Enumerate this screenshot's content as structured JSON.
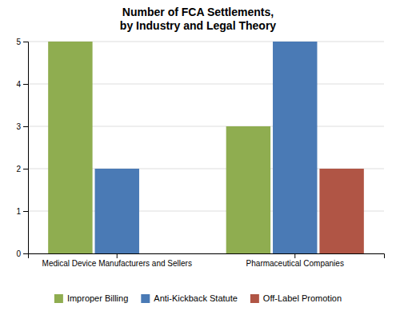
{
  "chart_data": {
    "type": "bar",
    "title": "Number of FCA Settlements,\nby Industry and Legal Theory",
    "categories": [
      "Medical Device Manufacturers and Sellers",
      "Pharmaceutical Companies"
    ],
    "series": [
      {
        "name": "Improper Billing",
        "values": [
          5,
          3
        ],
        "color": "#8fad50"
      },
      {
        "name": "Anti-Kickback Statute",
        "values": [
          2,
          5
        ],
        "color": "#4a7ab5"
      },
      {
        "name": "Off-Label Promotion",
        "values": [
          0,
          2
        ],
        "color": "#b05545"
      }
    ],
    "ylim": [
      0,
      5
    ],
    "yticks": [
      0,
      1,
      2,
      3,
      4,
      5
    ],
    "grid": true,
    "legend": "bottom"
  }
}
